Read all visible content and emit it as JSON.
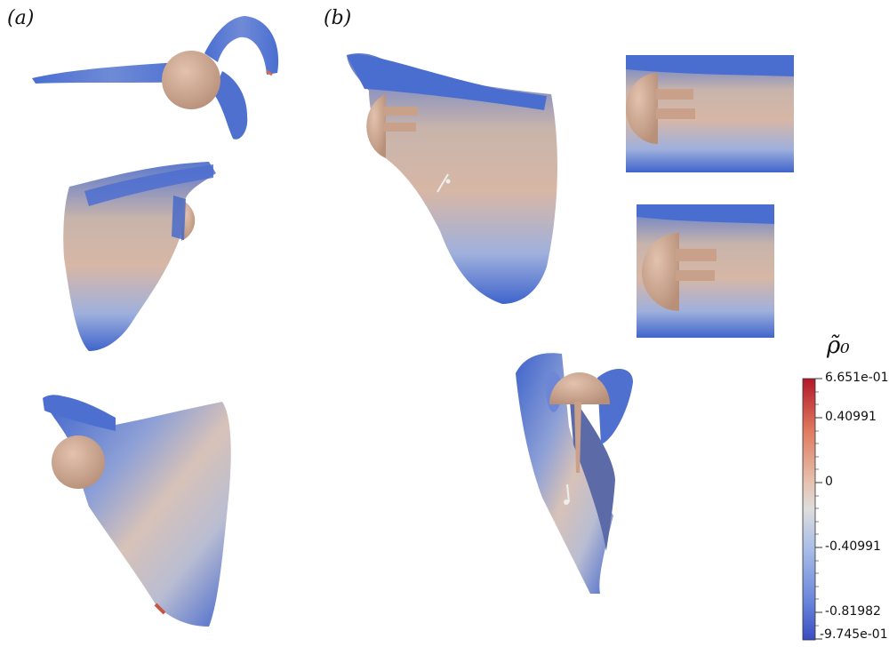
{
  "panels": {
    "a": "(a)",
    "b": "(b)"
  },
  "colorbar": {
    "title": "ρ̃₀",
    "ticks": [
      "6.651e-01",
      "0.40991",
      "0",
      "-0.40991",
      "-0.81982",
      "-9.745e-01"
    ],
    "colors": {
      "max": "#b2182b",
      "mid": "#dddddd",
      "min": "#3b4cc0"
    }
  },
  "colors": {
    "bone_blue": "#4a6fd0",
    "bone_grey": "#c9c5c2",
    "bone_warm": "#d9a08c",
    "humeral_head": "#c9a18a"
  }
}
